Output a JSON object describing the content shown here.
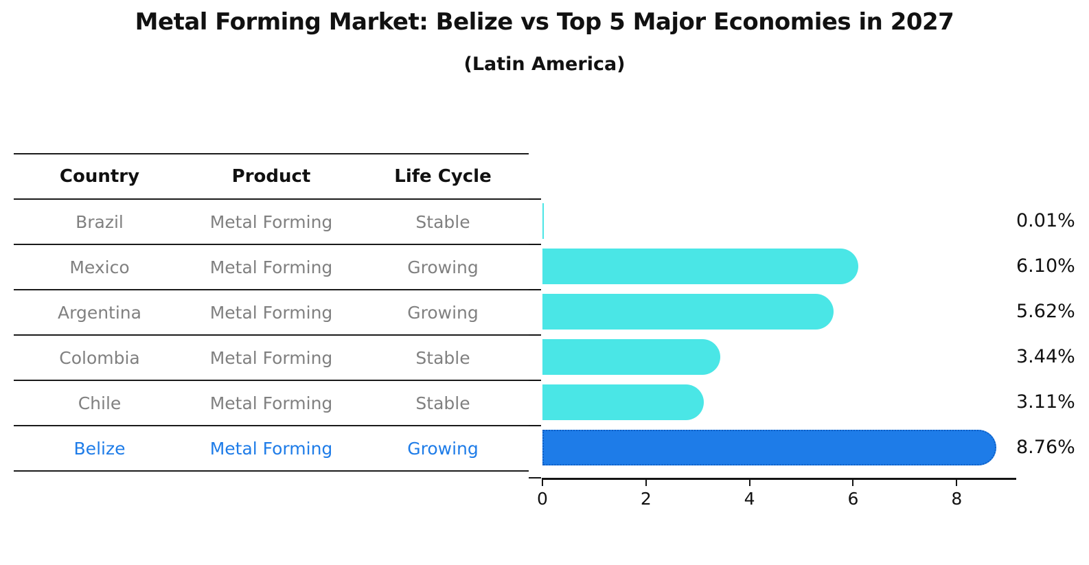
{
  "title": "Metal Forming Market: Belize vs Top 5 Major Economies in 2027",
  "subtitle": "(Latin America)",
  "table": {
    "headers": [
      "Country",
      "Product",
      "Life Cycle"
    ],
    "rows": [
      {
        "country": "Brazil",
        "product": "Metal Forming",
        "life_cycle": "Stable",
        "highlight": false
      },
      {
        "country": "Mexico",
        "product": "Metal Forming",
        "life_cycle": "Growing",
        "highlight": false
      },
      {
        "country": "Argentina",
        "product": "Metal Forming",
        "life_cycle": "Growing",
        "highlight": false
      },
      {
        "country": "Colombia",
        "product": "Metal Forming",
        "life_cycle": "Stable",
        "highlight": false
      },
      {
        "country": "Chile",
        "product": "Metal Forming",
        "life_cycle": "Stable",
        "highlight": false
      },
      {
        "country": "Belize",
        "product": "Metal Forming",
        "life_cycle": "Growing",
        "highlight": true
      }
    ]
  },
  "chart_data": {
    "type": "bar",
    "orientation": "horizontal",
    "categories": [
      "Brazil",
      "Mexico",
      "Argentina",
      "Colombia",
      "Chile",
      "Belize"
    ],
    "values": [
      0.01,
      6.1,
      5.62,
      3.44,
      3.11,
      8.76
    ],
    "value_labels": [
      "0.01%",
      "6.10%",
      "5.62%",
      "3.44%",
      "3.11%",
      "8.76%"
    ],
    "xticks": [
      0,
      2,
      4,
      6,
      8
    ],
    "xlim": [
      0,
      9.15
    ],
    "grid": false,
    "legend": "none",
    "bar_color": "#4ae6e6",
    "highlight_color": "#1e7ce8",
    "highlight_index": 5,
    "highlight_border_color": "#0e5ec4"
  },
  "colors": {
    "text": "#111111",
    "muted_text": "#808080",
    "accent": "#1e7ce8",
    "line": "#1a1a1a",
    "background": "#ffffff"
  }
}
